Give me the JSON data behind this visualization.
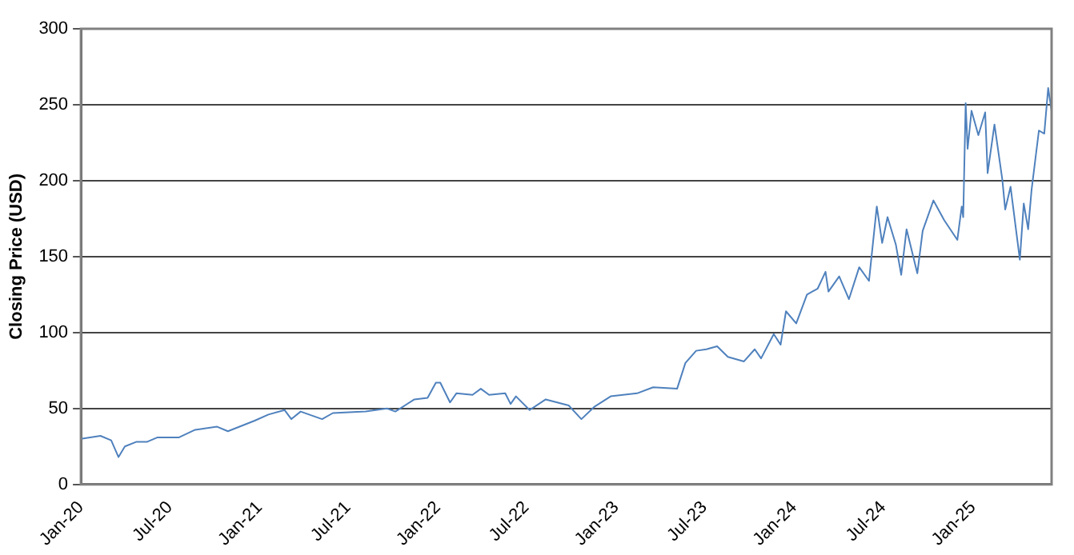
{
  "chart_data": {
    "type": "line",
    "ylabel": "Closing Price (USD)",
    "x": [
      "2020-01-01",
      "2020-02-10",
      "2020-03-03",
      "2020-03-18",
      "2020-03-31",
      "2020-04-23",
      "2020-05-15",
      "2020-06-06",
      "2020-07-20",
      "2020-08-22",
      "2020-10-06",
      "2020-10-28",
      "2020-12-22",
      "2021-01-19",
      "2021-02-21",
      "2021-03-07",
      "2021-03-26",
      "2021-05-09",
      "2021-05-31",
      "2021-08-06",
      "2021-09-19",
      "2021-10-06",
      "2021-11-14",
      "2021-12-11",
      "2021-12-28",
      "2022-01-06",
      "2022-01-26",
      "2022-02-08",
      "2022-03-13",
      "2022-03-30",
      "2022-04-16",
      "2022-05-19",
      "2022-05-30",
      "2022-06-10",
      "2022-07-08",
      "2022-08-10",
      "2022-09-26",
      "2022-10-22",
      "2022-11-17",
      "2022-12-21",
      "2023-02-13",
      "2023-03-18",
      "2023-05-06",
      "2023-05-23",
      "2023-06-14",
      "2023-07-05",
      "2023-07-27",
      "2023-08-18",
      "2023-09-20",
      "2023-10-12",
      "2023-10-25",
      "2023-11-20",
      "2023-12-04",
      "2023-12-15",
      "2024-01-05",
      "2024-01-27",
      "2024-02-18",
      "2024-03-05",
      "2024-03-11",
      "2024-04-02",
      "2024-04-22",
      "2024-05-13",
      "2024-06-02",
      "2024-06-18",
      "2024-06-29",
      "2024-07-10",
      "2024-07-27",
      "2024-08-07",
      "2024-08-18",
      "2024-09-09",
      "2024-09-20",
      "2024-10-12",
      "2024-11-03",
      "2024-11-30",
      "2024-12-09",
      "2024-12-12",
      "2024-12-17",
      "2024-12-21",
      "2024-12-29",
      "2025-01-12",
      "2025-01-26",
      "2025-01-31",
      "2025-02-14",
      "2025-03-02",
      "2025-03-08",
      "2025-03-19",
      "2025-03-30",
      "2025-04-07",
      "2025-04-15",
      "2025-04-24",
      "2025-05-01",
      "2025-05-16",
      "2025-05-27",
      "2025-06-04",
      "2025-06-11"
    ],
    "series": [
      {
        "color": "#4f81bd",
        "values": [
          30,
          32,
          29,
          18,
          25,
          28,
          28,
          31,
          31,
          36,
          38,
          35,
          42,
          46,
          49,
          43,
          48,
          43,
          47,
          48,
          50,
          48,
          56,
          57,
          67,
          67,
          54,
          60,
          59,
          63,
          59,
          60,
          53,
          58,
          49,
          56,
          52,
          43,
          51,
          58,
          60,
          64,
          63,
          80,
          88,
          89,
          91,
          84,
          81,
          89,
          83,
          99,
          92,
          114,
          106,
          125,
          129,
          140,
          127,
          137,
          122,
          143,
          134,
          183,
          159,
          176,
          158,
          138,
          168,
          139,
          167,
          187,
          174,
          161,
          183,
          176,
          251,
          221,
          246,
          230,
          245,
          205,
          237,
          201,
          181,
          196,
          168,
          148,
          185,
          168,
          194,
          233,
          231,
          261,
          246
        ]
      }
    ],
    "xlim": [
      "2020-01-01",
      "2025-06-11"
    ],
    "xticks": [
      {
        "value": "2020-01-01",
        "label": "Jan-20"
      },
      {
        "value": "2020-07-01",
        "label": "Jul-20"
      },
      {
        "value": "2021-01-01",
        "label": "Jan-21"
      },
      {
        "value": "2021-07-01",
        "label": "Jul-21"
      },
      {
        "value": "2022-01-01",
        "label": "Jan-22"
      },
      {
        "value": "2022-07-01",
        "label": "Jul-22"
      },
      {
        "value": "2023-01-01",
        "label": "Jan-23"
      },
      {
        "value": "2023-07-01",
        "label": "Jul-23"
      },
      {
        "value": "2024-01-01",
        "label": "Jan-24"
      },
      {
        "value": "2024-07-01",
        "label": "Jul-24"
      },
      {
        "value": "2025-01-01",
        "label": "Jan-25"
      }
    ],
    "ylim": [
      0,
      300
    ],
    "yticks": [
      0,
      50,
      100,
      150,
      200,
      250,
      300
    ],
    "grid": "y",
    "legend": false,
    "marker": "none",
    "line_style": "solid"
  }
}
